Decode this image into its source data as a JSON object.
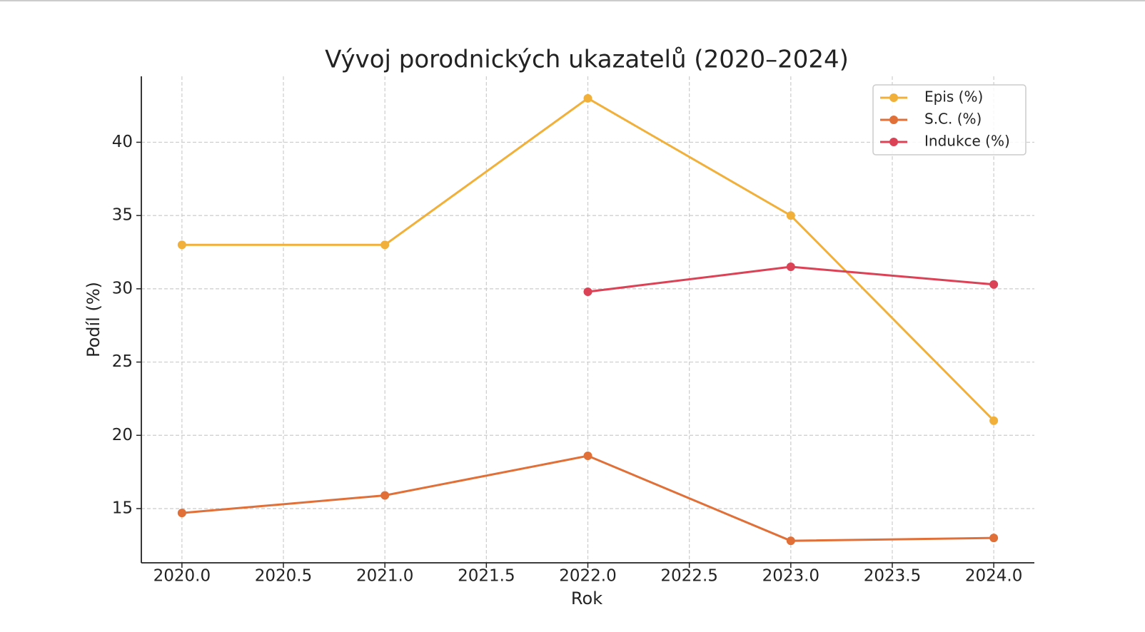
{
  "chart_data": {
    "type": "line",
    "title": "Vývoj porodnických ukazatelů (2020–2024)",
    "x_label": "Rok",
    "y_label": "Podíl (%)",
    "x": [
      2020,
      2021,
      2022,
      2023,
      2024
    ],
    "series": [
      {
        "name": "Epis (%)",
        "color": "#f0b03a",
        "values": [
          33,
          33,
          43,
          35,
          21
        ]
      },
      {
        "name": "S.C. (%)",
        "color": "#e07038",
        "values": [
          14.7,
          15.9,
          18.6,
          12.8,
          13.0
        ]
      },
      {
        "name": "Indukce (%)",
        "color": "#dc4256",
        "values": [
          null,
          null,
          29.8,
          31.5,
          30.3
        ]
      }
    ],
    "xlim": [
      2019.8,
      2024.2
    ],
    "xticks": [
      {
        "value": 2020,
        "label": "2020.0"
      },
      {
        "value": 2020.5,
        "label": "2020.5"
      },
      {
        "value": 2021,
        "label": "2021.0"
      },
      {
        "value": 2021.5,
        "label": "2021.5"
      },
      {
        "value": 2022,
        "label": "2022.0"
      },
      {
        "value": 2022.5,
        "label": "2022.5"
      },
      {
        "value": 2023,
        "label": "2023.0"
      },
      {
        "value": 2023.5,
        "label": "2023.5"
      },
      {
        "value": 2024,
        "label": "2024.0"
      }
    ],
    "ylim": [
      11.3,
      44.5
    ],
    "yticks": [
      15,
      20,
      25,
      30,
      35,
      40
    ],
    "grid": true,
    "legend": "upper right"
  }
}
